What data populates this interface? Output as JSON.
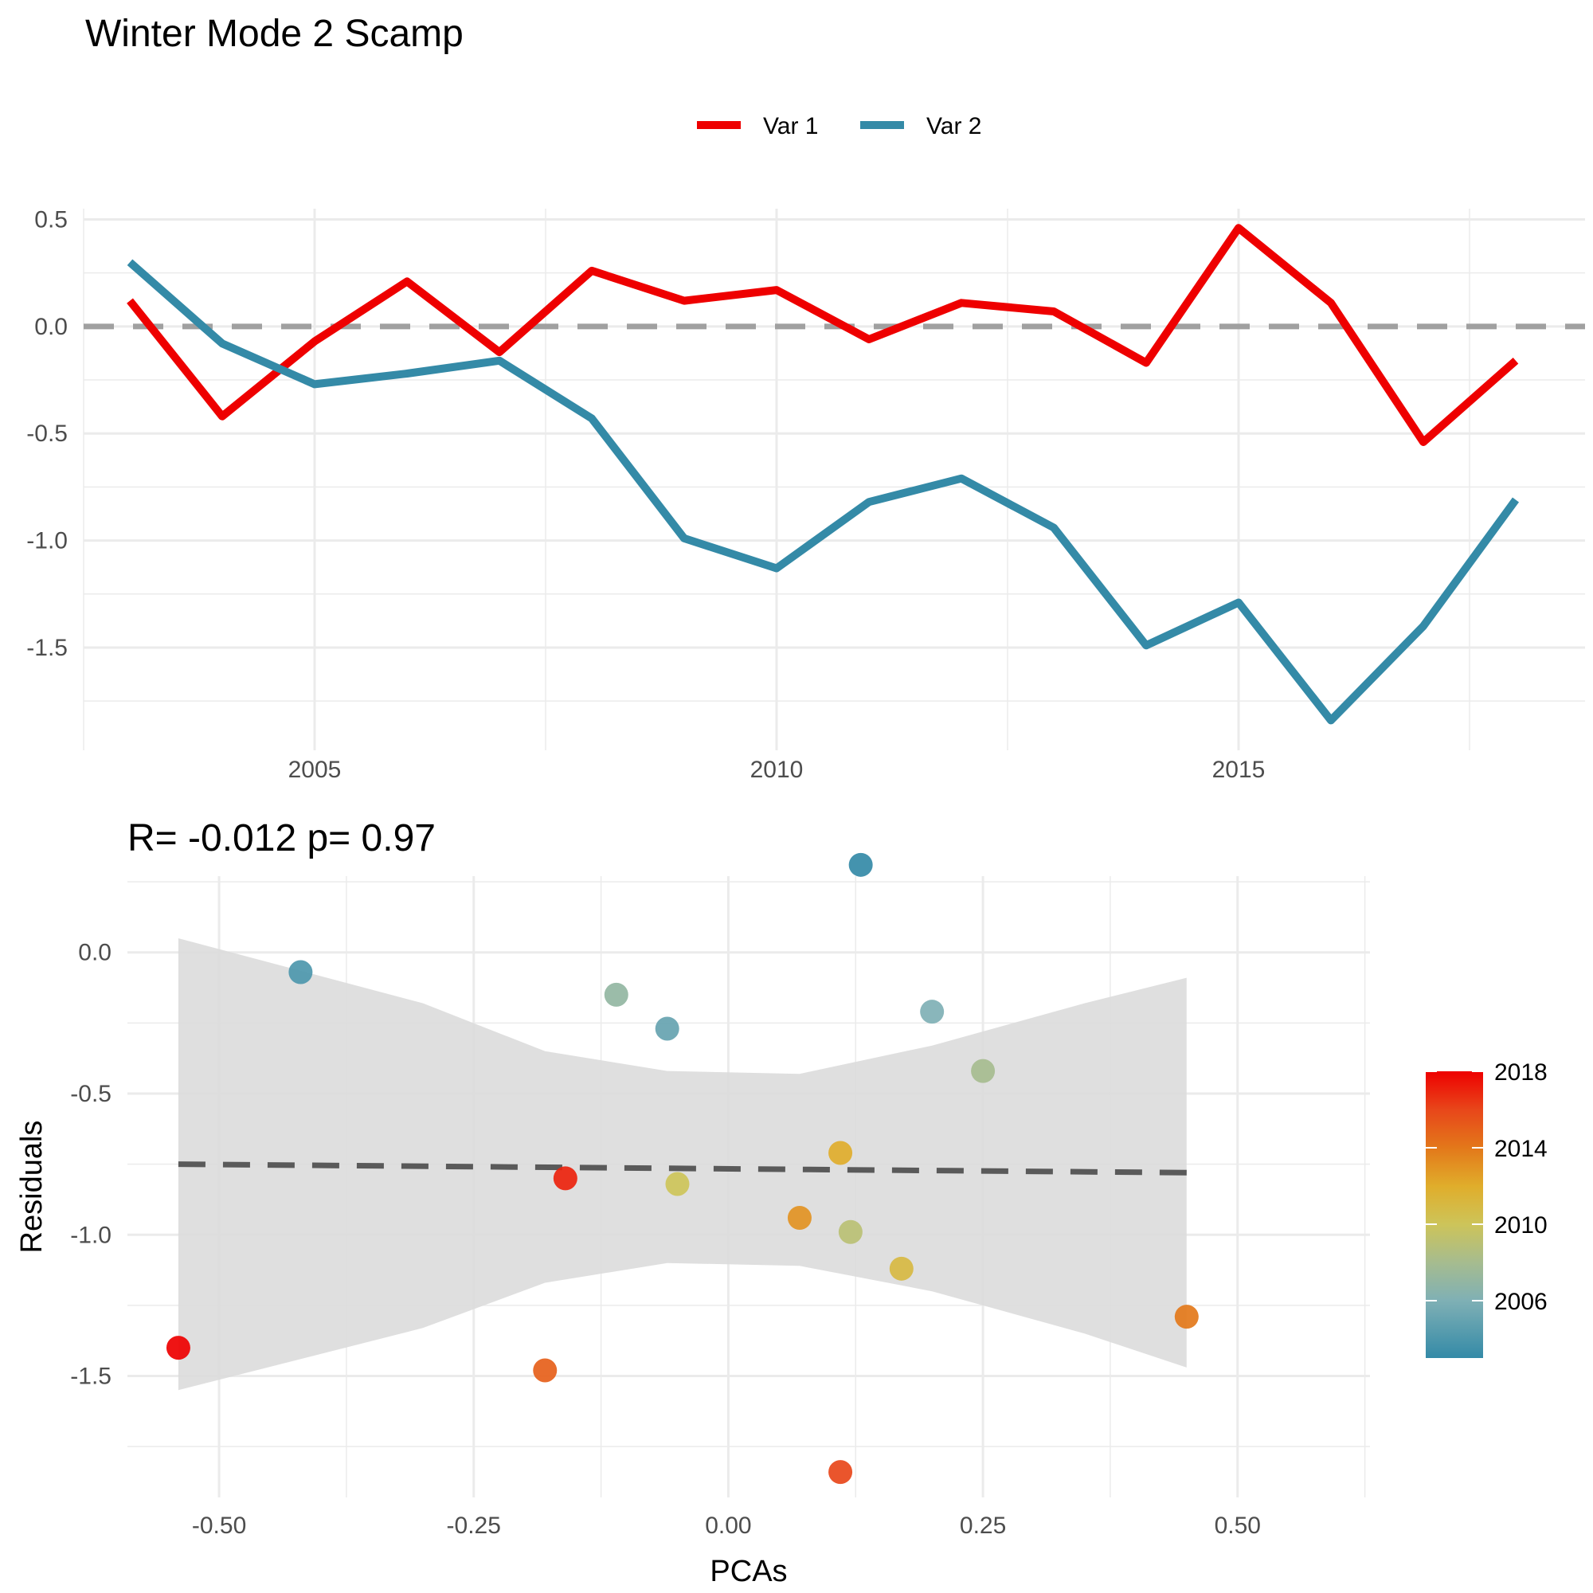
{
  "title": "Winter Mode 2 Scamp",
  "chart_data": [
    {
      "type": "line",
      "title": "",
      "xlabel": "",
      "ylabel": "",
      "xlim": [
        2002.5,
        2018.75
      ],
      "ylim": [
        -1.98,
        0.55
      ],
      "x_ticks": [
        2005,
        2010,
        2015
      ],
      "x_tick_labels": [
        "2005",
        "2010",
        "2015"
      ],
      "y_ticks": [
        0.5,
        0.0,
        -0.5,
        -1.0,
        -1.5
      ],
      "y_tick_labels": [
        "0.5",
        "0.0",
        "-0.5",
        "-1.0",
        "-1.5"
      ],
      "grid": true,
      "legend_position": "top",
      "reference_line": {
        "y": 0,
        "style": "dashed",
        "color": "#a0a0a0"
      },
      "x": [
        2003,
        2004,
        2005,
        2006,
        2007,
        2008,
        2009,
        2010,
        2011,
        2012,
        2013,
        2014,
        2015,
        2016,
        2017,
        2018
      ],
      "series": [
        {
          "name": "Var 1",
          "color": "#ee0000",
          "values": [
            0.12,
            -0.42,
            -0.07,
            0.21,
            -0.12,
            0.26,
            0.12,
            0.17,
            -0.06,
            0.11,
            0.07,
            -0.17,
            0.46,
            0.11,
            -0.54,
            -0.16
          ]
        },
        {
          "name": "Var 2",
          "color": "#348aa7",
          "values": [
            0.3,
            -0.08,
            -0.27,
            -0.22,
            -0.16,
            -0.43,
            -0.99,
            -1.13,
            -0.82,
            -0.71,
            -0.94,
            -1.49,
            -1.29,
            -1.84,
            -1.4,
            -0.81
          ]
        }
      ]
    },
    {
      "type": "scatter",
      "title": "R= -0.012  p= 0.97",
      "xlabel": "PCAs",
      "ylabel": "Residuals",
      "xlim": [
        -0.59,
        0.63
      ],
      "ylim": [
        -1.93,
        0.27
      ],
      "x_ticks": [
        -0.5,
        -0.25,
        0.0,
        0.25,
        0.5
      ],
      "x_tick_labels": [
        "-0.50",
        "-0.25",
        "0.00",
        "0.25",
        "0.50"
      ],
      "y_ticks": [
        0.0,
        -0.5,
        -1.0,
        -1.5
      ],
      "y_tick_labels": [
        "0.0",
        "-0.5",
        "-1.0",
        "-1.5"
      ],
      "grid": true,
      "points": [
        {
          "x": -0.54,
          "y": -1.4,
          "year": 2018
        },
        {
          "x": -0.42,
          "y": -0.07,
          "year": 2004
        },
        {
          "x": -0.18,
          "y": -1.48,
          "year": 2015
        },
        {
          "x": -0.16,
          "y": -0.8,
          "year": 2017
        },
        {
          "x": -0.11,
          "y": -0.15,
          "year": 2007
        },
        {
          "x": -0.06,
          "y": -0.27,
          "year": 2005
        },
        {
          "x": -0.05,
          "y": -0.82,
          "year": 2010
        },
        {
          "x": 0.07,
          "y": -0.94,
          "year": 2013
        },
        {
          "x": 0.11,
          "y": -0.71,
          "year": 2012
        },
        {
          "x": 0.11,
          "y": -1.84,
          "year": 2016
        },
        {
          "x": 0.12,
          "y": -0.99,
          "year": 2009
        },
        {
          "x": 0.13,
          "y": 0.31,
          "year": 2003
        },
        {
          "x": 0.17,
          "y": -1.12,
          "year": 2011
        },
        {
          "x": 0.2,
          "y": -0.21,
          "year": 2006
        },
        {
          "x": 0.25,
          "y": -0.42,
          "year": 2008
        },
        {
          "x": 0.45,
          "y": -1.29,
          "year": 2014
        }
      ],
      "fit_line": {
        "x": [
          -0.54,
          0.45
        ],
        "y": [
          -0.75,
          -0.78
        ],
        "style": "dashed",
        "color": "#5a5a5a"
      },
      "confidence_band": {
        "x": [
          -0.54,
          -0.3,
          -0.18,
          -0.06,
          0.07,
          0.2,
          0.35,
          0.45
        ],
        "upper": [
          0.05,
          -0.18,
          -0.35,
          -0.42,
          -0.43,
          -0.33,
          -0.18,
          -0.09
        ],
        "lower": [
          -1.55,
          -1.33,
          -1.17,
          -1.1,
          -1.11,
          -1.2,
          -1.35,
          -1.47
        ],
        "color": "#dcdcdc"
      },
      "colorbar": {
        "ticks": [
          2018,
          2014,
          2010,
          2006
        ],
        "tick_labels": [
          "2018",
          "2014",
          "2010",
          "2006"
        ],
        "range": [
          2003,
          2018
        ],
        "stops": [
          {
            "value": 2003,
            "color": "#348aa7"
          },
          {
            "value": 2006,
            "color": "#7fb0b5"
          },
          {
            "value": 2008,
            "color": "#a6bc8f"
          },
          {
            "value": 2010,
            "color": "#cdc459"
          },
          {
            "value": 2012,
            "color": "#e0ad2b"
          },
          {
            "value": 2014,
            "color": "#e3781a"
          },
          {
            "value": 2016,
            "color": "#e8461a"
          },
          {
            "value": 2018,
            "color": "#ee0000"
          }
        ]
      }
    }
  ]
}
